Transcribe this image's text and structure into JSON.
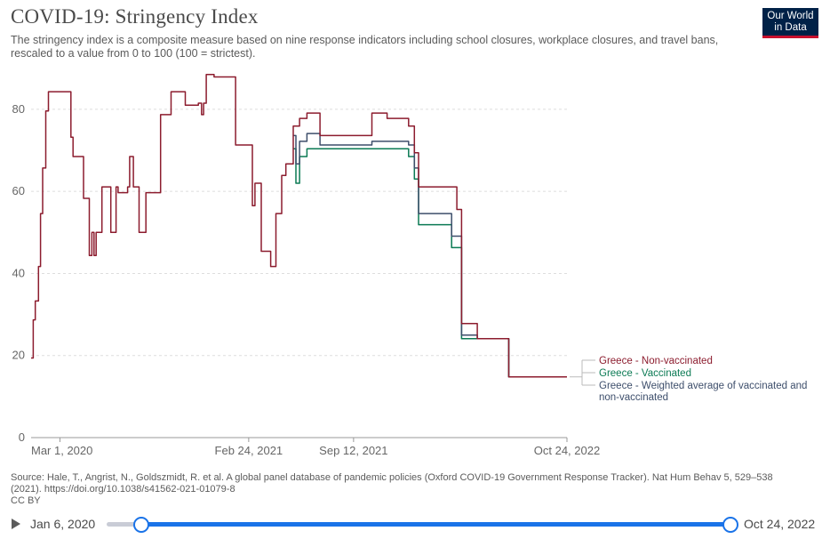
{
  "header": {
    "title": "COVID-19: Stringency Index",
    "subtitle": "The stringency index is a composite measure based on nine response indicators including school closures, workplace closures, and travel bans, rescaled to a value from 0 to 100 (100 = strictest).",
    "logo_line1": "Our World",
    "logo_line2": "in Data"
  },
  "footer": {
    "source": "Source: Hale, T., Angrist, N., Goldszmidt, R. et al. A global panel database of pandemic policies (Oxford COVID-19 Government Response Tracker). Nat Hum Behav 5, 529–538 (2021). https://doi.org/10.1038/s41562-021-01079-8",
    "license": "CC BY"
  },
  "timeline": {
    "start_label": "Jan 6, 2020",
    "end_label": "Oct 24, 2022"
  },
  "colors": {
    "non_vaccinated": "#8c1c2e",
    "vaccinated": "#0b7a54",
    "weighted": "#3d4e6b",
    "grid": "#dddddd",
    "axis": "#999999",
    "slider": "#1a73e8"
  },
  "chart_data": {
    "type": "line",
    "title": "COVID-19: Stringency Index",
    "x_start": "2020-01-06",
    "x_end": "2022-10-24",
    "ylim": [
      0,
      88
    ],
    "yticks": [
      0,
      20,
      40,
      60,
      80
    ],
    "xticks": [
      {
        "date": "2020-03-01",
        "label": "Mar 1, 2020"
      },
      {
        "date": "2021-02-24",
        "label": "Feb 24, 2021"
      },
      {
        "date": "2021-09-12",
        "label": "Sep 12, 2021"
      },
      {
        "date": "2022-10-24",
        "label": "Oct 24, 2022"
      }
    ],
    "grid": "horizontal dashed",
    "legend": "right, inline labels",
    "series": [
      {
        "key": "non_vaccinated",
        "name": "Greece - Non-vaccinated",
        "points": [
          [
            "2020-01-06",
            19.4
          ],
          [
            "2020-01-10",
            28.7
          ],
          [
            "2020-01-14",
            33.3
          ],
          [
            "2020-01-20",
            41.7
          ],
          [
            "2020-01-24",
            54.6
          ],
          [
            "2020-01-28",
            65.7
          ],
          [
            "2020-02-03",
            79.6
          ],
          [
            "2020-02-08",
            84.3
          ],
          [
            "2020-03-18",
            84.3
          ],
          [
            "2020-03-22",
            73.2
          ],
          [
            "2020-03-26",
            68.5
          ],
          [
            "2020-04-15",
            58.3
          ],
          [
            "2020-04-26",
            44.4
          ],
          [
            "2020-05-01",
            50.0
          ],
          [
            "2020-05-05",
            44.4
          ],
          [
            "2020-05-09",
            50.0
          ],
          [
            "2020-05-20",
            61.1
          ],
          [
            "2020-06-06",
            50.0
          ],
          [
            "2020-06-16",
            61.1
          ],
          [
            "2020-06-20",
            59.7
          ],
          [
            "2020-07-08",
            61.1
          ],
          [
            "2020-07-12",
            68.5
          ],
          [
            "2020-07-19",
            61.1
          ],
          [
            "2020-07-30",
            50.0
          ],
          [
            "2020-08-12",
            59.7
          ],
          [
            "2020-09-09",
            78.7
          ],
          [
            "2020-09-29",
            84.3
          ],
          [
            "2020-10-26",
            81.0
          ],
          [
            "2020-11-20",
            81.5
          ],
          [
            "2020-11-26",
            78.7
          ],
          [
            "2020-11-30",
            81.5
          ],
          [
            "2020-12-05",
            88.5
          ],
          [
            "2020-12-20",
            87.9
          ],
          [
            "2021-01-30",
            71.3
          ],
          [
            "2021-02-24",
            71.3
          ],
          [
            "2021-03-03",
            56.5
          ],
          [
            "2021-03-08",
            62.0
          ],
          [
            "2021-03-20",
            45.4
          ],
          [
            "2021-04-07",
            41.7
          ],
          [
            "2021-04-17",
            54.6
          ],
          [
            "2021-04-28",
            63.9
          ],
          [
            "2021-05-06",
            66.7
          ],
          [
            "2021-05-20",
            75.9
          ],
          [
            "2021-06-01",
            77.8
          ],
          [
            "2021-06-15",
            79.1
          ],
          [
            "2021-07-10",
            73.6
          ],
          [
            "2021-10-17",
            79.1
          ],
          [
            "2021-11-15",
            77.8
          ],
          [
            "2021-12-26",
            75.9
          ],
          [
            "2022-01-06",
            69.4
          ],
          [
            "2022-01-14",
            61.1
          ],
          [
            "2022-03-28",
            55.6
          ],
          [
            "2022-04-06",
            27.8
          ],
          [
            "2022-05-06",
            24.1
          ],
          [
            "2022-07-05",
            14.8
          ],
          [
            "2022-10-24",
            14.8
          ]
        ]
      },
      {
        "key": "vaccinated",
        "name": "Greece - Vaccinated",
        "points": [
          [
            "2021-05-20",
            70.4
          ],
          [
            "2021-05-25",
            62.0
          ],
          [
            "2021-06-01",
            68.5
          ],
          [
            "2021-06-15",
            70.4
          ],
          [
            "2021-11-15",
            70.4
          ],
          [
            "2021-12-26",
            68.5
          ],
          [
            "2022-01-06",
            63.0
          ],
          [
            "2022-01-14",
            51.9
          ],
          [
            "2022-03-06",
            51.9
          ],
          [
            "2022-03-18",
            46.3
          ],
          [
            "2022-03-28",
            46.3
          ],
          [
            "2022-04-06",
            24.1
          ],
          [
            "2022-05-06",
            24.1
          ],
          [
            "2022-07-05",
            14.8
          ],
          [
            "2022-10-24",
            14.8
          ]
        ]
      },
      {
        "key": "weighted",
        "name": "Greece - Weighted average of vaccinated and non-vaccinated",
        "points": [
          [
            "2021-05-20",
            73.6
          ],
          [
            "2021-05-25",
            66.7
          ],
          [
            "2021-06-01",
            72.2
          ],
          [
            "2021-06-15",
            74.1
          ],
          [
            "2021-07-10",
            71.3
          ],
          [
            "2021-10-17",
            72.2
          ],
          [
            "2021-11-15",
            72.2
          ],
          [
            "2021-12-26",
            71.3
          ],
          [
            "2022-01-06",
            65.7
          ],
          [
            "2022-01-14",
            54.6
          ],
          [
            "2022-03-06",
            54.6
          ],
          [
            "2022-03-18",
            49.1
          ],
          [
            "2022-03-28",
            49.1
          ],
          [
            "2022-04-06",
            25.0
          ],
          [
            "2022-05-06",
            24.1
          ],
          [
            "2022-07-05",
            14.8
          ],
          [
            "2022-10-24",
            14.8
          ]
        ]
      }
    ]
  }
}
